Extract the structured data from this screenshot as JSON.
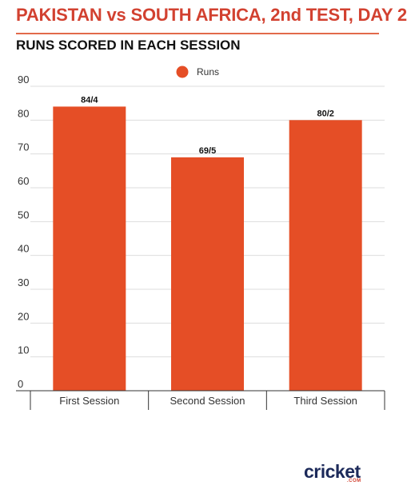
{
  "header": {
    "title": "PAKISTAN vs SOUTH AFRICA, 2nd TEST, DAY 2",
    "subtitle": "RUNS SCORED IN EACH SESSION"
  },
  "colors": {
    "title": "#d24130",
    "bar": "#e54e26",
    "grid": "#dddddd",
    "axis": "#333333"
  },
  "chart_data": {
    "type": "bar",
    "title": "RUNS SCORED IN EACH SESSION",
    "xlabel": "",
    "ylabel": "",
    "categories": [
      "First Session",
      "Second Session",
      "Third Session"
    ],
    "series": [
      {
        "name": "Runs",
        "values": [
          84,
          69,
          80
        ],
        "data_labels": [
          "84/4",
          "69/5",
          "80/2"
        ]
      }
    ],
    "yticks": [
      "0",
      "10",
      "20",
      "30",
      "40",
      "50",
      "60",
      "70",
      "80",
      "90"
    ],
    "ylim": [
      0,
      90
    ],
    "grid": true,
    "legend": "top-center"
  },
  "logo": {
    "text": "cricket",
    "sub": ".COM"
  }
}
